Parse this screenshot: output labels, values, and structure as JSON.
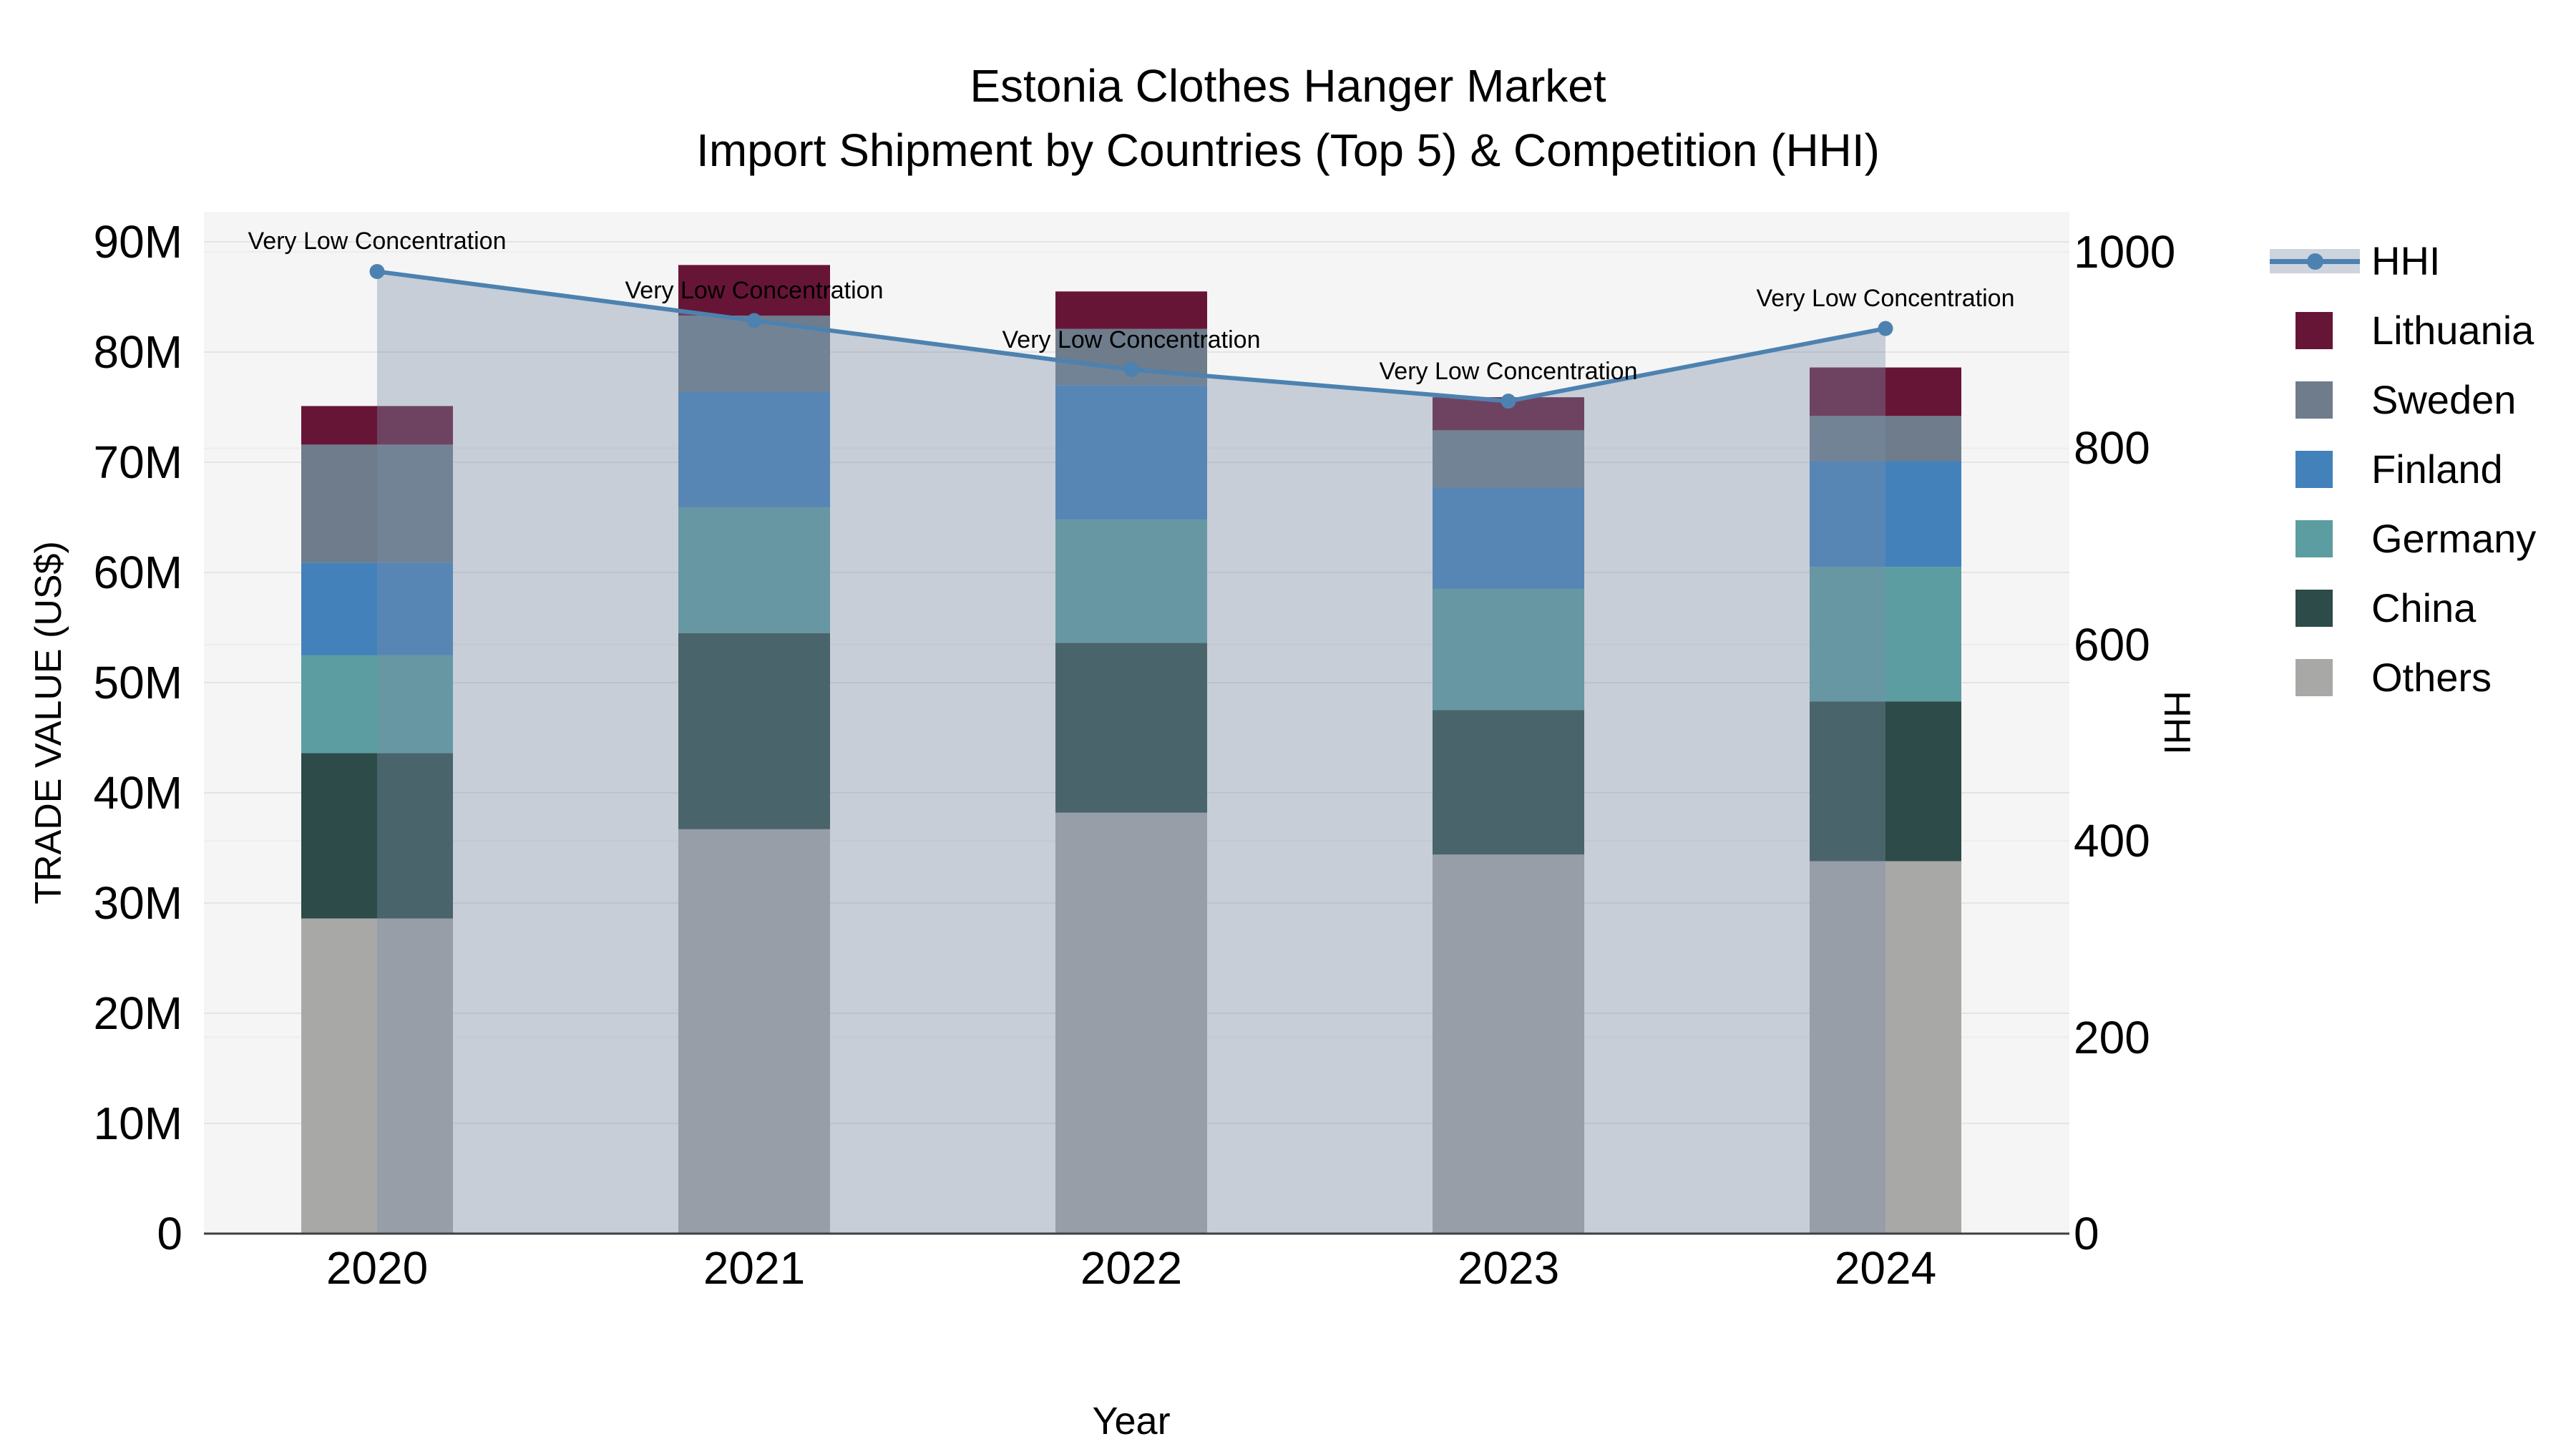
{
  "title": {
    "line1": "Estonia Clothes Hanger Market",
    "line2": "Import Shipment by Countries (Top 5) & Competition (HHI)"
  },
  "axes": {
    "left": {
      "title": "TRADE VALUE (US$)",
      "ticks": [
        "0",
        "10M",
        "20M",
        "30M",
        "40M",
        "50M",
        "60M",
        "70M",
        "80M",
        "90M"
      ]
    },
    "right": {
      "title": "HHI",
      "ticks": [
        "0",
        "200",
        "400",
        "600",
        "800",
        "1000"
      ]
    },
    "x": {
      "title": "Year",
      "ticks": [
        "2020",
        "2021",
        "2022",
        "2023",
        "2024"
      ]
    }
  },
  "legend": {
    "items": [
      {
        "label": "HHI",
        "type": "line",
        "color": "#4d82b0"
      },
      {
        "label": "Lithuania",
        "type": "swatch",
        "color": "#671536"
      },
      {
        "label": "Sweden",
        "type": "swatch",
        "color": "#6e7c8c"
      },
      {
        "label": "Finland",
        "type": "swatch",
        "color": "#4381bb"
      },
      {
        "label": "Germany",
        "type": "swatch",
        "color": "#5b9da0"
      },
      {
        "label": "China",
        "type": "swatch",
        "color": "#2d4b48"
      },
      {
        "label": "Others",
        "type": "swatch",
        "color": "#a8a8a6"
      }
    ]
  },
  "annotations": {
    "items": [
      "Very Low Concentration",
      "Very Low Concentration",
      "Very Low Concentration",
      "Very Low Concentration",
      "Very Low Concentration"
    ]
  },
  "chart_data": {
    "type": "combo",
    "subtype": "stacked-bar + line(area)",
    "categories": [
      "2020",
      "2021",
      "2022",
      "2023",
      "2024"
    ],
    "value_unit": "million US$",
    "series": [
      {
        "name": "Others",
        "axis": "left",
        "stack_order": 1,
        "color": "#a8a8a6",
        "values": [
          28.6,
          36.7,
          38.2,
          34.4,
          33.8
        ]
      },
      {
        "name": "China",
        "axis": "left",
        "stack_order": 2,
        "color": "#2d4b48",
        "values": [
          15.0,
          17.8,
          15.4,
          13.1,
          14.5
        ]
      },
      {
        "name": "Germany",
        "axis": "left",
        "stack_order": 3,
        "color": "#5b9da0",
        "values": [
          8.9,
          11.4,
          11.2,
          11.0,
          12.2
        ]
      },
      {
        "name": "Finland",
        "axis": "left",
        "stack_order": 4,
        "color": "#4381bb",
        "values": [
          8.4,
          10.5,
          12.2,
          9.2,
          9.6
        ]
      },
      {
        "name": "Sweden",
        "axis": "left",
        "stack_order": 5,
        "color": "#6e7c8c",
        "values": [
          10.7,
          6.9,
          5.1,
          5.2,
          4.1
        ]
      },
      {
        "name": "Lithuania",
        "axis": "left",
        "stack_order": 6,
        "color": "#671536",
        "values": [
          3.5,
          4.6,
          3.4,
          3.0,
          4.4
        ]
      }
    ],
    "stacked_totals": [
      75.1,
      87.9,
      85.5,
      75.9,
      78.6
    ],
    "line_series": {
      "name": "HHI",
      "axis": "right",
      "color": "#4d82b0",
      "fill": "rgba(124,143,168,0.38)",
      "values": [
        980,
        930,
        880,
        848,
        922
      ],
      "point_labels": [
        "Very Low Concentration",
        "Very Low Concentration",
        "Very Low Concentration",
        "Very Low Concentration",
        "Very Low Concentration"
      ]
    },
    "title": "Estonia Clothes Hanger Market — Import Shipment by Countries (Top 5) & Competition (HHI)",
    "xlabel": "Year",
    "ylabel_left": "TRADE VALUE (US$)",
    "ylabel_right": "HHI",
    "ylim_left": [
      0,
      90000000
    ],
    "ylim_right": [
      0,
      1000
    ],
    "grid": true,
    "legend_position": "right-top-outside",
    "plot_bg": "#f5f5f5",
    "grid_color": "#e4e4e4",
    "axis_line_color": "#3d4043"
  }
}
